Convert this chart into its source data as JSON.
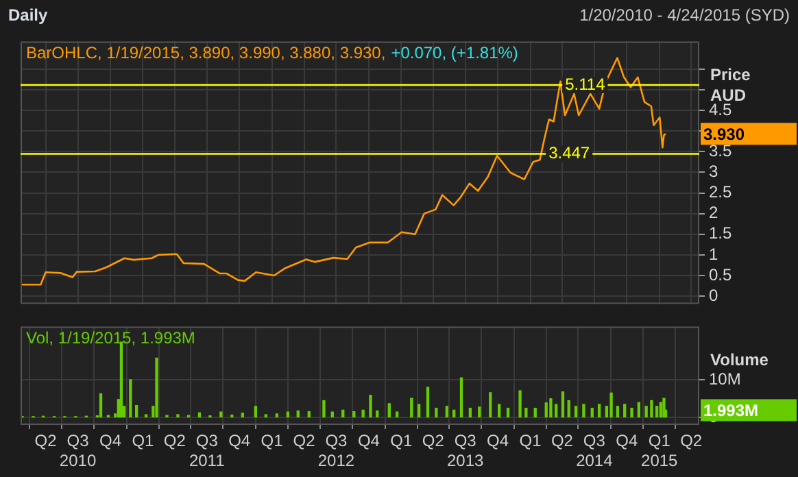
{
  "chart_data": [
    {
      "type": "line",
      "title": "Daily",
      "subtitle": "1/20/2010 - 4/24/2015 (SYD)",
      "ylabel": "Price AUD",
      "x": [
        "2010-01-20",
        "2010-03-18",
        "2010-04-01",
        "2010-05-14",
        "2010-06-16",
        "2010-06-28",
        "2010-08-19",
        "2010-09-20",
        "2010-11-10",
        "2010-12-06",
        "2011-01-26",
        "2011-02-14",
        "2011-04-07",
        "2011-04-26",
        "2011-06-23",
        "2011-08-07",
        "2011-08-26",
        "2011-09-27",
        "2011-10-16",
        "2011-11-17",
        "2012-01-07",
        "2012-02-08",
        "2012-04-07",
        "2012-05-02",
        "2012-06-23",
        "2012-08-01",
        "2012-08-26",
        "2012-10-04",
        "2012-11-24",
        "2013-01-02",
        "2013-02-09",
        "2013-03-07",
        "2013-04-08",
        "2013-04-27",
        "2013-05-29",
        "2013-06-18",
        "2013-07-13",
        "2013-08-06",
        "2013-09-03",
        "2013-09-29",
        "2013-11-06",
        "2013-12-15",
        "2014-01-09",
        "2014-01-28",
        "2014-02-10",
        "2014-02-23",
        "2014-03-08",
        "2014-03-27",
        "2014-04-09",
        "2014-05-05",
        "2014-05-18",
        "2014-06-20",
        "2014-07-15",
        "2014-08-03",
        "2014-09-04",
        "2014-09-23",
        "2014-10-12",
        "2014-11-01",
        "2014-11-20",
        "2014-12-09",
        "2014-12-16",
        "2015-01-02",
        "2015-01-10",
        "2015-01-14",
        "2015-01-19"
      ],
      "series": [
        {
          "color": "#ff9900",
          "values": [
            0.28,
            0.28,
            0.58,
            0.56,
            0.46,
            0.59,
            0.6,
            0.7,
            0.92,
            0.88,
            0.92,
            1.0,
            1.02,
            0.8,
            0.78,
            0.55,
            0.55,
            0.39,
            0.37,
            0.58,
            0.5,
            0.68,
            0.89,
            0.83,
            0.93,
            0.9,
            1.18,
            1.3,
            1.3,
            1.55,
            1.5,
            2.0,
            2.1,
            2.45,
            2.2,
            2.4,
            2.73,
            2.55,
            2.89,
            3.4,
            2.99,
            2.83,
            3.25,
            3.3,
            3.82,
            4.28,
            4.23,
            5.2,
            4.38,
            4.9,
            4.38,
            4.9,
            4.54,
            5.2,
            5.77,
            5.3,
            5.06,
            5.3,
            4.7,
            4.6,
            4.14,
            4.33,
            3.6,
            3.9,
            3.93
          ]
        }
      ],
      "xlim": [
        "2010-01-20",
        "2015-04-24"
      ],
      "xticks": [
        {
          "value": "2010-04-01",
          "label": null
        },
        {
          "value": "2010-07-01",
          "label": null
        },
        {
          "value": "2010-10-01",
          "label": null
        },
        {
          "value": "2011-01-01",
          "label": null
        },
        {
          "value": "2011-04-01",
          "label": null
        },
        {
          "value": "2011-07-01",
          "label": null
        },
        {
          "value": "2011-10-01",
          "label": null
        },
        {
          "value": "2012-01-01",
          "label": null
        },
        {
          "value": "2012-04-01",
          "label": null
        },
        {
          "value": "2012-07-01",
          "label": null
        },
        {
          "value": "2012-10-01",
          "label": null
        },
        {
          "value": "2013-01-01",
          "label": null
        },
        {
          "value": "2013-04-01",
          "label": null
        },
        {
          "value": "2013-07-01",
          "label": null
        },
        {
          "value": "2013-10-01",
          "label": null
        },
        {
          "value": "2014-01-01",
          "label": null
        },
        {
          "value": "2014-04-01",
          "label": null
        },
        {
          "value": "2014-07-01",
          "label": null
        },
        {
          "value": "2014-10-01",
          "label": null
        },
        {
          "value": "2015-01-01",
          "label": null
        },
        {
          "value": "2015-04-01",
          "label": null
        }
      ],
      "ylim": [
        -0.19,
        6.17
      ],
      "yticks": [
        0,
        0.5,
        1,
        1.5,
        2,
        2.5,
        3,
        3.5,
        {
          "value": 4,
          "label": null
        },
        4.5,
        {
          "value": 5,
          "label": null
        },
        {
          "value": 5.5,
          "label": null
        }
      ],
      "grid": true,
      "tick_labels": "y",
      "ref_lines": [
        {
          "axis": "y",
          "value": 5.114,
          "label": "5.114",
          "color": "#ffff00"
        },
        {
          "axis": "y",
          "value": 3.447,
          "label": "3.447",
          "color": "#ffff00"
        }
      ],
      "annotations": [
        "BarOHLC, 1/19/2015, 3.890, 3.990, 3.880, 3.930,",
        "+0.070, (+1.81%)",
        "3.930"
      ]
    },
    {
      "type": "bar",
      "ylabel": "Volume",
      "x": [
        "2010-01-25",
        "2010-02-25",
        "2010-03-25",
        "2010-04-25",
        "2010-05-25",
        "2010-06-25",
        "2010-07-25",
        "2010-08-25",
        "2010-09-04",
        "2010-09-25",
        "2010-10-15",
        "2010-10-24",
        "2010-11-01",
        "2010-11-09",
        "2010-11-27",
        "2010-12-14",
        "2011-01-10",
        "2011-01-30",
        "2011-02-09",
        "2011-03-10",
        "2011-04-10",
        "2011-05-10",
        "2011-06-10",
        "2011-07-10",
        "2011-08-10",
        "2011-09-10",
        "2011-10-10",
        "2011-11-16",
        "2011-12-15",
        "2012-01-15",
        "2012-02-15",
        "2012-03-15",
        "2012-04-15",
        "2012-05-27",
        "2012-06-20",
        "2012-07-20",
        "2012-08-20",
        "2012-09-15",
        "2012-10-06",
        "2012-10-25",
        "2012-11-28",
        "2012-12-20",
        "2013-01-30",
        "2013-02-20",
        "2013-03-17",
        "2013-04-10",
        "2013-05-10",
        "2013-05-30",
        "2013-06-20",
        "2013-07-15",
        "2013-08-10",
        "2013-09-10",
        "2013-10-05",
        "2013-10-30",
        "2013-12-03",
        "2013-12-20",
        "2014-01-15",
        "2014-02-15",
        "2014-02-28",
        "2014-03-15",
        "2014-04-03",
        "2014-04-20",
        "2014-05-10",
        "2014-06-01",
        "2014-06-25",
        "2014-07-15",
        "2014-08-05",
        "2014-08-18",
        "2014-09-05",
        "2014-09-25",
        "2014-10-15",
        "2014-11-04",
        "2014-11-25",
        "2014-12-10",
        "2014-12-25",
        "2015-01-05",
        "2015-01-14",
        "2015-01-19"
      ],
      "series": [
        {
          "color": "#66cc00",
          "values": [
            0.3,
            0.3,
            0.4,
            0.3,
            0.3,
            0.3,
            0.4,
            0.5,
            6.3,
            0.6,
            1.0,
            4.8,
            19.9,
            3.0,
            10.0,
            3.2,
            0.8,
            3.0,
            15.7,
            0.6,
            0.8,
            0.6,
            1.3,
            0.5,
            1.5,
            0.7,
            1.2,
            3.0,
            0.8,
            1.0,
            1.5,
            1.8,
            1.6,
            4.5,
            1.5,
            2.0,
            1.6,
            2.0,
            5.9,
            1.8,
            3.7,
            1.5,
            5.1,
            3.5,
            8.0,
            2.5,
            3.0,
            2.0,
            10.5,
            2.5,
            2.8,
            6.6,
            3.5,
            2.5,
            7.1,
            2.5,
            2.5,
            3.9,
            5.0,
            3.5,
            6.8,
            4.5,
            3.0,
            3.5,
            2.5,
            3.5,
            3.0,
            6.5,
            3.0,
            3.5,
            2.5,
            4.0,
            3.0,
            4.5,
            3.0,
            4.0,
            5.1,
            2.0
          ]
        }
      ],
      "xlim": [
        "2010-01-20",
        "2015-04-24"
      ],
      "xticks": [
        {
          "value": "2010-04-01",
          "label": "Q2"
        },
        {
          "value": "2010-07-01",
          "label": "Q3\n2010"
        },
        {
          "value": "2010-10-01",
          "label": "Q4"
        },
        {
          "value": "2011-01-01",
          "label": "Q1"
        },
        {
          "value": "2011-04-01",
          "label": "Q2"
        },
        {
          "value": "2011-07-01",
          "label": "Q3\n2011"
        },
        {
          "value": "2011-10-01",
          "label": "Q4"
        },
        {
          "value": "2012-01-01",
          "label": "Q1"
        },
        {
          "value": "2012-04-01",
          "label": "Q2"
        },
        {
          "value": "2012-07-01",
          "label": "Q3\n2012"
        },
        {
          "value": "2012-10-01",
          "label": "Q4"
        },
        {
          "value": "2013-01-01",
          "label": "Q1"
        },
        {
          "value": "2013-04-01",
          "label": "Q2"
        },
        {
          "value": "2013-07-01",
          "label": "Q3\n2013"
        },
        {
          "value": "2013-10-01",
          "label": "Q4"
        },
        {
          "value": "2014-01-01",
          "label": "Q1"
        },
        {
          "value": "2014-04-01",
          "label": "Q2"
        },
        {
          "value": "2014-07-01",
          "label": "Q3\n2014"
        },
        {
          "value": "2014-10-01",
          "label": "Q4"
        },
        {
          "value": "2015-01-01",
          "label": "Q1\n2015"
        },
        {
          "value": "2015-04-01",
          "label": "Q2"
        }
      ],
      "ylim": [
        -1.9,
        24
      ],
      "yticks": [
        0,
        {
          "value": 10,
          "label": "10M"
        }
      ],
      "grid": true,
      "annotations": [
        "Vol, 1/19/2015, 1.993M",
        "1.993M"
      ]
    }
  ]
}
